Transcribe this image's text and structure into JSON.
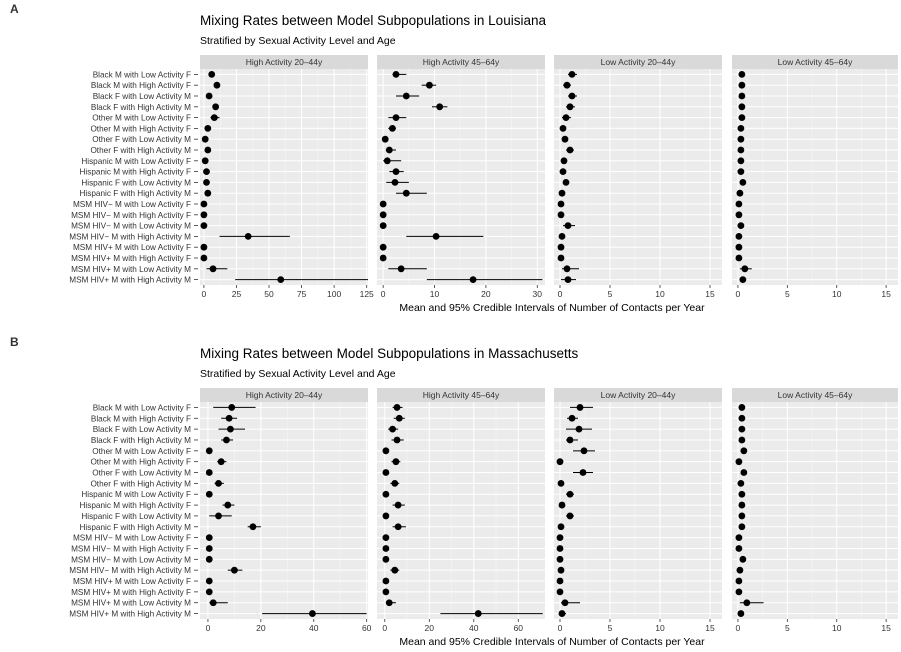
{
  "figure": {
    "xlabel": "Mean and 95% Credible Intervals of Number of Contacts per Year",
    "categories": [
      "Black M with Low Activity F",
      "Black M with High Activity F",
      "Black F with Low Activity M",
      "Black F with High Activity M",
      "Other M with Low Activity F",
      "Other M with High Activity F",
      "Other F with Low Activity M",
      "Other F with High Activity M",
      "Hispanic M with Low Activity F",
      "Hispanic M with High Activity F",
      "Hispanic F with Low Activity M",
      "Hispanic F with High Activity M",
      "MSM HIV− M with Low Activity F",
      "MSM HIV− M with High Activity F",
      "MSM HIV− M with Low Activity M",
      "MSM HIV− M with High Activity M",
      "MSM HIV+ M with Low Activity F",
      "MSM HIV+ M with High Activity F",
      "MSM HIV+ M with Low Activity M",
      "MSM HIV+ M with High Activity M"
    ]
  },
  "chart_data": [
    {
      "type": "scatter",
      "panel_letter": "A",
      "title": "Mixing Rates between Model Subpopulations in Louisiana",
      "subtitle": "Stratified by Sexual Activity Level and Age",
      "xlabel": "Mean and 95% Credible Intervals of Number of Contacts per Year",
      "facets": [
        {
          "label": "High Activity 20–44y",
          "xlim": [
            -3,
            126
          ],
          "ticks": [
            0,
            25,
            50,
            75,
            100,
            125
          ],
          "mean": [
            6,
            10,
            4,
            9,
            8,
            3,
            1,
            3,
            1,
            2,
            2,
            3,
            0,
            0,
            0,
            34,
            0,
            0,
            7,
            59
          ],
          "lo": [
            5,
            8,
            3,
            7,
            5,
            2,
            0,
            2,
            0,
            1,
            1,
            2,
            0,
            0,
            0,
            12,
            0,
            0,
            2,
            24
          ],
          "hi": [
            8,
            12,
            6,
            11,
            12,
            5,
            2,
            5,
            2,
            3,
            3,
            5,
            1,
            1,
            1,
            66,
            1,
            1,
            18,
            126
          ]
        },
        {
          "label": "High Activity 45–64y",
          "xlim": [
            -1.2,
            31.5
          ],
          "ticks": [
            0,
            10,
            20,
            30
          ],
          "mean": [
            2.5,
            9,
            4.5,
            11,
            2.5,
            1.8,
            0.4,
            1.2,
            0.8,
            2.5,
            2.3,
            4.5,
            0,
            0,
            0,
            10.3,
            0,
            0,
            3.5,
            17.5
          ],
          "lo": [
            1.8,
            7.5,
            2.5,
            9.5,
            1,
            1,
            0,
            0.5,
            0,
            1.2,
            0.6,
            2.5,
            0,
            0,
            0,
            4.5,
            0,
            0,
            1,
            8.5
          ],
          "hi": [
            4.5,
            10.3,
            7,
            12.5,
            4.5,
            2.5,
            1,
            2.5,
            3.5,
            4,
            5,
            8.5,
            0.2,
            0.2,
            0.2,
            19.5,
            0.2,
            0.2,
            8.5,
            31
          ]
        },
        {
          "label": "Low Activity 20–44y",
          "xlim": [
            -0.6,
            16.2
          ],
          "ticks": [
            0,
            5,
            10,
            15
          ],
          "mean": [
            1.2,
            0.7,
            1.2,
            1,
            0.6,
            0.3,
            0.5,
            1,
            0.4,
            0.3,
            0.6,
            0.2,
            0.1,
            0.1,
            0.8,
            0.2,
            0.1,
            0.1,
            0.7,
            0.8
          ],
          "lo": [
            0.8,
            0.3,
            0.8,
            0.6,
            0.2,
            0.1,
            0.2,
            0.6,
            0.1,
            0.1,
            0.3,
            0,
            0,
            0,
            0.3,
            0,
            0,
            0,
            0.2,
            0.1
          ],
          "hi": [
            1.7,
            1.1,
            1.7,
            1.5,
            1.1,
            0.5,
            0.8,
            1.4,
            0.7,
            0.5,
            0.9,
            0.4,
            0.2,
            0.2,
            1.5,
            0.4,
            0.2,
            0.2,
            1.9,
            1.6
          ]
        },
        {
          "label": "Low Activity 45–64y",
          "xlim": [
            -0.6,
            16.2
          ],
          "ticks": [
            0,
            5,
            10,
            15
          ],
          "mean": [
            0.4,
            0.4,
            0.4,
            0.4,
            0.4,
            0.3,
            0.3,
            0.3,
            0.3,
            0.3,
            0.5,
            0.2,
            0.1,
            0.1,
            0.3,
            0.1,
            0.1,
            0.1,
            0.7,
            0.5
          ],
          "lo": [
            0.3,
            0.3,
            0.3,
            0.3,
            0.3,
            0.2,
            0.2,
            0.2,
            0.2,
            0.2,
            0.3,
            0.1,
            0,
            0,
            0.2,
            0,
            0,
            0,
            0.2,
            0.2
          ],
          "hi": [
            0.5,
            0.5,
            0.5,
            0.5,
            0.5,
            0.4,
            0.4,
            0.4,
            0.4,
            0.4,
            0.7,
            0.3,
            0.2,
            0.2,
            0.4,
            0.2,
            0.2,
            0.2,
            1.4,
            0.8
          ]
        }
      ]
    },
    {
      "type": "scatter",
      "panel_letter": "B",
      "title": "Mixing Rates between Model Subpopulations in Massachusetts",
      "subtitle": "Stratified by Sexual Activity Level and Age",
      "xlabel": "Mean and 95% Credible Intervals of Number of Contacts per Year",
      "facets": [
        {
          "label": "High Activity 20–44y",
          "xlim": [
            -3,
            60.5
          ],
          "ticks": [
            0,
            20,
            40,
            60
          ],
          "mean": [
            9,
            8,
            8.5,
            7,
            0.5,
            5,
            0.5,
            4,
            0.5,
            7.5,
            4,
            17,
            0.5,
            0.5,
            0.5,
            10,
            0.5,
            0.5,
            2,
            39.5
          ],
          "lo": [
            2,
            5,
            4,
            5,
            0,
            3.5,
            0,
            2.5,
            0,
            5.5,
            0.5,
            15,
            0,
            0,
            0,
            7.5,
            0,
            0,
            0.5,
            20.5
          ],
          "hi": [
            18,
            11,
            14,
            9.5,
            1,
            7,
            1,
            6,
            1,
            10,
            9,
            20,
            1,
            1,
            1,
            13,
            1,
            1,
            7.5,
            60
          ]
        },
        {
          "label": "High Activity 45–64y",
          "xlim": [
            -3.5,
            72
          ],
          "ticks": [
            0,
            20,
            40,
            60
          ],
          "mean": [
            5.5,
            6.5,
            3.5,
            5.5,
            0.5,
            5,
            0.5,
            4.5,
            0.5,
            6,
            0.5,
            6,
            0.5,
            0.5,
            0.5,
            4.5,
            0.5,
            0.5,
            2,
            42
          ],
          "lo": [
            3.5,
            4,
            1.5,
            3,
            0,
            3,
            0,
            2.5,
            0,
            3.5,
            0,
            3.5,
            0,
            0,
            0,
            2.5,
            0,
            0,
            0.5,
            25
          ],
          "hi": [
            8,
            9,
            6,
            8.5,
            1,
            7,
            1,
            6.5,
            1,
            9,
            1,
            9.5,
            1,
            1,
            1,
            6.5,
            1,
            1,
            5,
            71
          ]
        },
        {
          "label": "Low Activity 20–44y",
          "xlim": [
            -0.6,
            16.2
          ],
          "ticks": [
            0,
            5,
            10,
            15
          ],
          "mean": [
            2,
            1.2,
            1.9,
            1,
            2.4,
            0,
            2.3,
            0.1,
            1,
            0.2,
            1,
            0.1,
            0,
            0,
            0,
            0.1,
            0,
            0,
            0.5,
            0.2
          ],
          "lo": [
            1,
            0.7,
            0.6,
            0.6,
            1.3,
            0,
            1.3,
            0,
            0.6,
            0,
            0.6,
            0,
            0,
            0,
            0,
            0,
            0,
            0,
            0.1,
            0
          ],
          "hi": [
            3.3,
            1.8,
            3.2,
            1.8,
            3.5,
            0.2,
            3.3,
            0.3,
            1.4,
            0.4,
            1.4,
            0.3,
            0.1,
            0.1,
            0.1,
            0.3,
            0.1,
            0.1,
            2,
            0.6
          ]
        },
        {
          "label": "Low Activity 45–64y",
          "xlim": [
            -0.6,
            16.2
          ],
          "ticks": [
            0,
            5,
            10,
            15
          ],
          "mean": [
            0.4,
            0.4,
            0.4,
            0.4,
            0.6,
            0.1,
            0.6,
            0.3,
            0.4,
            0.4,
            0.4,
            0.4,
            0.1,
            0.1,
            0.5,
            0.2,
            0.1,
            0.1,
            0.9,
            0.3
          ],
          "lo": [
            0.3,
            0.3,
            0.3,
            0.3,
            0.4,
            0,
            0.4,
            0.2,
            0.3,
            0.3,
            0.3,
            0.3,
            0,
            0,
            0.3,
            0.1,
            0,
            0,
            0.2,
            0.1
          ],
          "hi": [
            0.5,
            0.5,
            0.5,
            0.5,
            0.8,
            0.2,
            0.8,
            0.4,
            0.5,
            0.5,
            0.5,
            0.5,
            0.2,
            0.2,
            0.7,
            0.3,
            0.2,
            0.2,
            2.6,
            0.5
          ]
        }
      ]
    }
  ]
}
